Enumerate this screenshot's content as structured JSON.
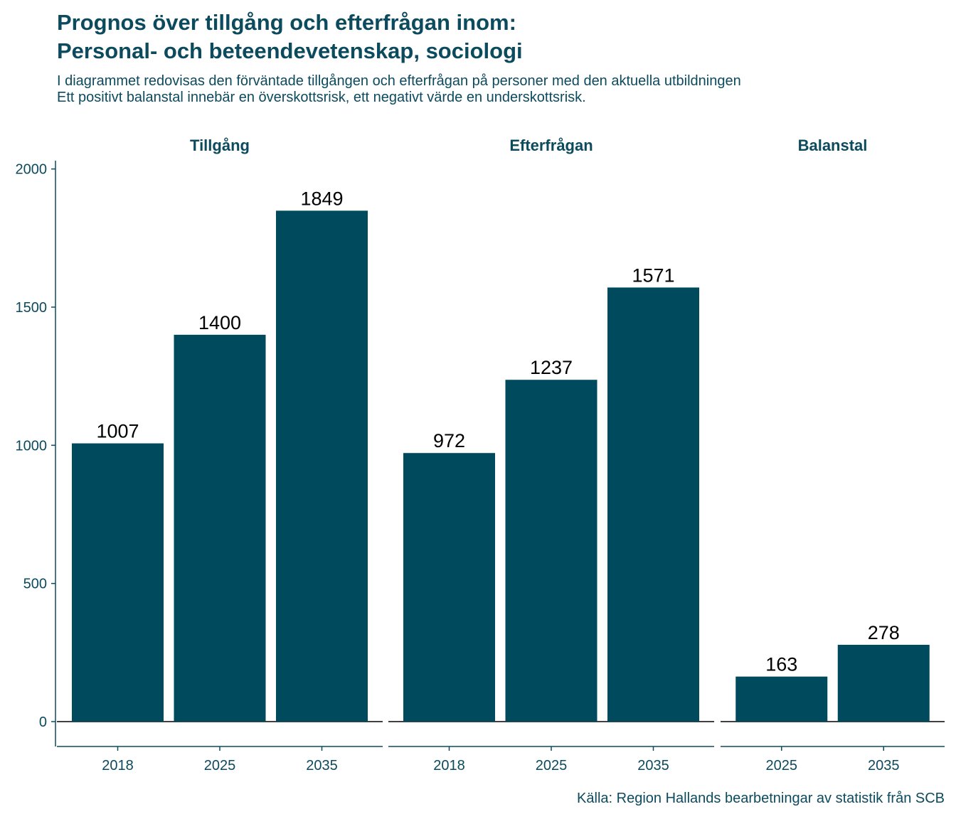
{
  "chart_data": {
    "type": "bar",
    "title": [
      "Prognos över tillgång och efterfrågan inom:",
      "Personal- och beteendevetenskap, sociologi"
    ],
    "subtitle": [
      "I diagrammet redovisas den förväntade tillgången och efterfrågan på personer med den aktuella utbildningen",
      "Ett positivt balanstal innebär en överskottsrisk, ett negativt värde en underskottsrisk."
    ],
    "caption": "Källa: Region Hallands bearbetningar av statistik från SCB",
    "ylim": [
      -90,
      2030
    ],
    "yticks": [
      0,
      500,
      1000,
      1500,
      2000
    ],
    "bar_color": "#004a5e",
    "text_color": "#0c4a5e",
    "facets": [
      {
        "name": "Tillgång",
        "categories": [
          "2018",
          "2025",
          "2035"
        ],
        "values": [
          1007,
          1400,
          1849
        ]
      },
      {
        "name": "Efterfrågan",
        "categories": [
          "2018",
          "2025",
          "2035"
        ],
        "values": [
          972,
          1237,
          1571
        ]
      },
      {
        "name": "Balanstal",
        "categories": [
          "2025",
          "2035"
        ],
        "values": [
          163,
          278
        ]
      }
    ]
  }
}
